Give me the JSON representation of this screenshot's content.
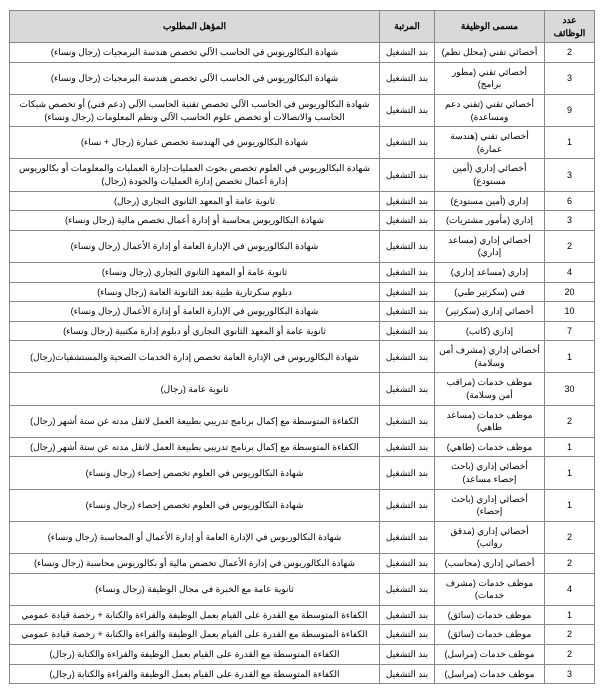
{
  "columns": [
    "عدد الوظائف",
    "مسمى الوظيفة",
    "المرتبة",
    "المؤهل المطلوب"
  ],
  "rows": [
    [
      "2",
      "أخصائي تقني (محلل نظم)",
      "بند التشغيل",
      "شهادة البكالوريوس في الحاسب الآلي تخصص هندسة البرمجيات (رجال ونساء)"
    ],
    [
      "3",
      "أخصائي تقني (مطور برامج)",
      "بند التشغيل",
      "شهادة البكالوريوس في الحاسب الآلي تخصص هندسة البرمجيات (رجال ونساء)"
    ],
    [
      "9",
      "أخصائي تقني (تقني دعم ومساعدة)",
      "بند التشغيل",
      "شهادة البكالوريوس في الحاسب الآلي تخصص تقنية الحاسب الآلي (دعم فني) أو تخصص شبكات الحاسب والاتصالات أو تخصص علوم الحاسب الآلي ونظم المعلومات (رجال ونساء)"
    ],
    [
      "1",
      "أخصائي تقني (هندسة عمارة)",
      "بند التشغيل",
      "شهادة البكالوريوس في الهندسة تخصص عمارة (رجال + نساء)"
    ],
    [
      "3",
      "أخصائي إداري (أمين مستودع)",
      "بند التشغيل",
      "شهادة البكالوريوس في العلوم تخصص بحوث العمليات-إدارة العمليات والمعلومات أو بكالوريوس إدارة أعمال تخصص إدارة العمليات والجودة (رجال)"
    ],
    [
      "6",
      "إداري (أمين مستودع)",
      "بند التشغيل",
      "ثانوية عامة أو المعهد الثانوي التجاري (رجال)"
    ],
    [
      "3",
      "إداري (مأمور مشتريات)",
      "بند التشغيل",
      "شهادة البكالوريوس محاسبة أو إدارة أعمال تخصص مالية (رجال ونساء)"
    ],
    [
      "2",
      "أخصائي إداري (مساعد إداري)",
      "بند التشغيل",
      "شهادة البكالوريوس في الإدارة العامة أو إدارة الأعمال (رجال ونساء)"
    ],
    [
      "4",
      "إداري (مساعد إداري)",
      "بند التشغيل",
      "ثانوية عامة أو المعهد الثانوي التجاري (رجال ونساء)"
    ],
    [
      "20",
      "فني (سكرتير طبي)",
      "بند التشغيل",
      "دبلوم سكرتارية طبية بعد الثانوية العامة (رجال ونساء)"
    ],
    [
      "10",
      "أخصائي إداري (سكرتير)",
      "بند التشغيل",
      "شهادة البكالوريوس في الإدارة العامة أو إدارة الأعمال (رجال ونساء)"
    ],
    [
      "7",
      "إداري (كاتب)",
      "بند التشغيل",
      "ثانوية عامة أو المعهد الثانوي التجاري أو دبلوم إدارة مكتبية (رجال ونساء)"
    ],
    [
      "1",
      "أخصائي إداري (مشرف أمن وسلامة)",
      "بند التشغيل",
      "شهادة البكالوريوس في الإدارة العامة تخصص إدارة الخدمات الصحية والمستشفيات(رجال)"
    ],
    [
      "30",
      "موظف خدمات (مراقب أمن وسلامة)",
      "بند التشغيل",
      "ثانوية عامة (رجال)"
    ],
    [
      "2",
      "موظف خدمات (مساعد طاهي)",
      "بند التشغيل",
      "الكفاءة المتوسطة مع إكمال برنامج تدريبي بطبيعة العمل لاتقل مدته عن ستة أشهر (رجال)"
    ],
    [
      "1",
      "موظف خدمات (طاهي)",
      "بند التشغيل",
      "الكفاءة المتوسطة مع إكمال برنامج تدريبي بطبيعة العمل لاتقل مدته عن ستة أشهر (رجال)"
    ],
    [
      "1",
      "أخصائي إداري (باحث إحصاء مساعد)",
      "بند التشغيل",
      "شهادة البكالوريوس في العلوم تخصص إحصاء (رجال ونساء)"
    ],
    [
      "1",
      "أخصائي إداري (باحث إحصاء)",
      "بند التشغيل",
      "شهادة البكالوريوس في العلوم تخصص إحصاء (رجال ونساء)"
    ],
    [
      "2",
      "أخصائي إداري (مدقق رواتب)",
      "بند التشغيل",
      "شهادة البكالوريوس في الإدارة العامة أو إدارة الأعمال أو المحاسبة (رجال ونساء)"
    ],
    [
      "2",
      "أخصائي إداري (محاسب)",
      "بند التشغيل",
      "شهادة البكالوريوس في إدارة الأعمال تخصص مالية أو بكالوريوس محاسبة (رجال ونساء)"
    ],
    [
      "4",
      "موظف خدمات (مشرف خدمات)",
      "بند التشغيل",
      "ثانوية عامة مع الخبرة في مجال الوظيفة (رجال ونساء)"
    ],
    [
      "1",
      "موظف خدمات (سائق)",
      "بند التشغيل",
      "الكفاءة المتوسطة مع القدرة على القيام بعمل الوظيفة والقراءة والكتابة + رخصة قيادة عمومي"
    ],
    [
      "2",
      "موظف خدمات (سائق)",
      "بند التشغيل",
      "الكفاءة المتوسطة مع القدرة على القيام بعمل الوظيفة والقراءة والكتابة + رخصة قيادة عمومي"
    ],
    [
      "2",
      "موظف خدمات (مراسل)",
      "بند التشغيل",
      "الكفاءة المتوسطة مع القدرة على القيام بعمل الوظيفة والقراءة والكتابة (رجال)"
    ],
    [
      "3",
      "موظف خدمات (مراسل)",
      "بند التشغيل",
      "الكفاءة المتوسطة مع القدرة على القيام بعمل الوظيفة والقراءة والكتابة (رجال)"
    ]
  ]
}
